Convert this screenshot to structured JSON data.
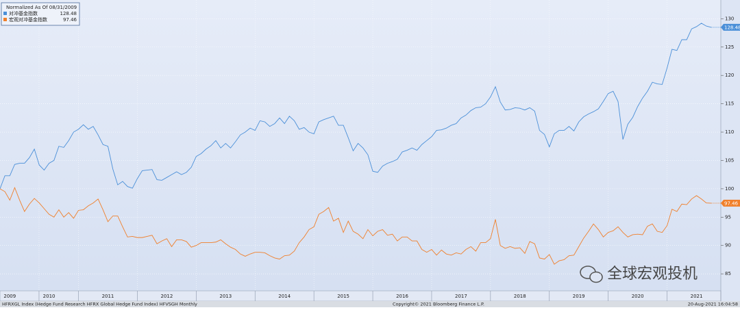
{
  "chart_data": {
    "type": "line",
    "legend_title": "Normalized As Of 08/31/2009",
    "categories": [
      null,
      null,
      "2009",
      null,
      null,
      null,
      null,
      null,
      null,
      null,
      "2010",
      null,
      null,
      null,
      null,
      null,
      null,
      null,
      null,
      null,
      null,
      null,
      "2011",
      null,
      null,
      null,
      null,
      null,
      null,
      null,
      null,
      null,
      null,
      null,
      "2012",
      null,
      null,
      null,
      null,
      null,
      null,
      null,
      null,
      null,
      null,
      null,
      "2013",
      null,
      null,
      null,
      null,
      null,
      null,
      null,
      null,
      null,
      null,
      null,
      "2014",
      null,
      null,
      null,
      null,
      null,
      null,
      null,
      null,
      null,
      null,
      null,
      "2015",
      null,
      null,
      null,
      null,
      null,
      null,
      null,
      null,
      null,
      null,
      null,
      "2016",
      null,
      null,
      null,
      null,
      null,
      null,
      null,
      null,
      null,
      null,
      null,
      "2017",
      null,
      null,
      null,
      null,
      null,
      null,
      null,
      null,
      null,
      null,
      null,
      "2018",
      null,
      null,
      null,
      null,
      null,
      null,
      null,
      null,
      null,
      null,
      null,
      "2019",
      null,
      null,
      null,
      null,
      null,
      null,
      null,
      null,
      null,
      null,
      null,
      "2020",
      null,
      null,
      null,
      null,
      null,
      null,
      null,
      null,
      null,
      null,
      null,
      "2021",
      null,
      null,
      null
    ],
    "series": [
      {
        "name": "对冲基金指数",
        "color": "#4a8fd8",
        "values": [
          100,
          102.3,
          102.3,
          104.3,
          104.5,
          104.5,
          105.5,
          107,
          104.2,
          103.3,
          104.5,
          105,
          107.5,
          107.3,
          108.5,
          110,
          110.5,
          111.3,
          110.5,
          111,
          109.5,
          107.8,
          107.5,
          103.5,
          100.7,
          101.3,
          100.4,
          100.1,
          101.8,
          103.2,
          103.3,
          103.4,
          101.6,
          101.5,
          102,
          102.5,
          103,
          102.5,
          102.9,
          103.8,
          105.7,
          106.2,
          107,
          107.6,
          108.5,
          107.2,
          108,
          107.2,
          108.3,
          109.5,
          110,
          110.7,
          110.3,
          112,
          111.8,
          111,
          111.5,
          112.5,
          111.5,
          112.8,
          112,
          110.5,
          110.8,
          110,
          109.7,
          111.8,
          112.2,
          112.5,
          112.8,
          111.2,
          111.2,
          109,
          106.7,
          108,
          107.2,
          106,
          103.1,
          102.9,
          104,
          104.5,
          104.8,
          105.2,
          106.5,
          106.8,
          107.2,
          106.8,
          107.8,
          108.5,
          109.2,
          110.3,
          110.4,
          110.7,
          111.2,
          111.5,
          112.5,
          113,
          113.8,
          114.3,
          114.4,
          115,
          116.2,
          118,
          115.3,
          113.9,
          114,
          114.3,
          114.2,
          113.9,
          114.3,
          113.7,
          110.3,
          109.6,
          107.4,
          109.7,
          110.3,
          110.3,
          111,
          110.2,
          111.8,
          112.7,
          113.2,
          113.6,
          114.1,
          115.4,
          116.8,
          117.2,
          115.4,
          108.7,
          111.4,
          112.6,
          114.5,
          116,
          117.2,
          118.8,
          118.5,
          118.4,
          121.3,
          124.6,
          124.4,
          126.3,
          126.3,
          128.2,
          128.6,
          129.2,
          128.7,
          128.48
        ]
      },
      {
        "name": "宏观对冲基金指数",
        "color": "#f07f2a",
        "values": [
          100,
          99.5,
          98,
          100.2,
          98,
          96,
          97.3,
          98.3,
          97.5,
          96.5,
          95.5,
          95,
          96.3,
          95,
          95.8,
          94.8,
          96.2,
          96.3,
          97,
          97.5,
          98.2,
          96.3,
          94.2,
          95.2,
          95.2,
          93.3,
          91.5,
          91.6,
          91.4,
          91.4,
          91.6,
          91.8,
          90.3,
          90.8,
          91.2,
          89.8,
          91,
          91,
          90.7,
          89.7,
          90,
          90.5,
          90.5,
          90.5,
          90.6,
          91,
          90.3,
          89.7,
          89.3,
          88.5,
          88.1,
          88.5,
          88.8,
          88.8,
          88.7,
          88.2,
          87.8,
          87.6,
          88.2,
          88.3,
          89,
          90.5,
          91.5,
          92.8,
          93.3,
          95.5,
          96,
          96.7,
          94.3,
          94.8,
          92.3,
          94.3,
          92.5,
          92,
          91.2,
          92.8,
          91.7,
          92.5,
          92.8,
          91.8,
          92,
          90.8,
          91.5,
          91.5,
          90.8,
          90.8,
          89.3,
          88.8,
          89.3,
          88.3,
          89.2,
          88.5,
          88.3,
          88.7,
          88.5,
          89.3,
          89.8,
          89,
          90.5,
          90.5,
          91.2,
          94.6,
          90,
          89.5,
          89.8,
          89.5,
          89.6,
          88.6,
          90.7,
          90.3,
          87.8,
          87.6,
          88.4,
          86.7,
          87.3,
          87.5,
          88.2,
          88.3,
          89.8,
          91.3,
          92.5,
          93.8,
          92.8,
          91.5,
          92.3,
          92.6,
          93.3,
          92.3,
          91.5,
          91.9,
          92,
          91.9,
          93.4,
          93.8,
          92.5,
          92.3,
          93.5,
          96.4,
          96,
          97.3,
          97.2,
          98.2,
          98.8,
          98.2,
          97.5,
          97.46
        ]
      }
    ],
    "ylim": [
      82,
      133.3
    ],
    "yticks": [
      85,
      90,
      95,
      100,
      105,
      110,
      115,
      120,
      125,
      130
    ],
    "grid": true,
    "watermark": "全球宏观投机",
    "footer_left": "HFRXGL Index (Hedge Fund Research HFRX Global Hedge Fund Index) HFVSGH  Monthly",
    "footer_center": "Copyright© 2021 Bloomberg Finance L.P.",
    "footer_right": "20-Aug-2021 16:04:58"
  }
}
